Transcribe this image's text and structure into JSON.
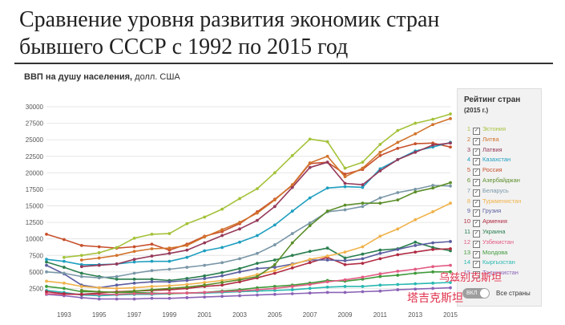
{
  "headline": {
    "line1": "Сравнение уровня развития экономик стран",
    "line2": "бывшего СССР с 1992 по 2015 год"
  },
  "subtitle": {
    "bold": "ВВП на душу населения,",
    "rest": " долл. США"
  },
  "legend": {
    "title": "Рейтинг стран",
    "subtitle": "(2015 г.)",
    "toggle_label": "ВКЛ",
    "toggle_text": "Все страны"
  },
  "watermarks": [
    "乌兹别克斯坦",
    "塔吉克斯坦"
  ],
  "chart_data": {
    "type": "line",
    "xlim": [
      1992,
      2015
    ],
    "ylim": [
      0,
      30000
    ],
    "x_ticks": [
      1993,
      1995,
      1997,
      1999,
      2001,
      2003,
      2005,
      2007,
      2009,
      2011,
      2013,
      2015
    ],
    "x_tick_labels": [
      "1993",
      "1995",
      "1997",
      "1999",
      "2001",
      "2003",
      "2005",
      "2007",
      "2009",
      "2011",
      "2013",
      "2015"
    ],
    "y_ticks": [
      2500,
      5000,
      7500,
      10000,
      12500,
      15000,
      17500,
      20000,
      22500,
      25000,
      27500,
      30000
    ],
    "y_tick_labels": [
      "2500",
      "5000",
      "7500",
      "10000",
      "12500",
      "15000",
      "17500",
      "20000",
      "22500",
      "25000",
      "27500",
      "30000"
    ],
    "grid": true,
    "legend_position": "right",
    "x": [
      1992,
      1993,
      1994,
      1995,
      1996,
      1997,
      1998,
      1999,
      2000,
      2001,
      2002,
      2003,
      2004,
      2005,
      2006,
      2007,
      2008,
      2009,
      2010,
      2011,
      2012,
      2013,
      2014,
      2015
    ],
    "series": [
      {
        "rank": 1,
        "name": "Эстония",
        "color": "#a4c23a",
        "values": [
          null,
          7200,
          7500,
          7900,
          8700,
          10100,
          10700,
          10800,
          12300,
          13300,
          14500,
          16100,
          17600,
          20000,
          22600,
          25100,
          24700,
          20700,
          21600,
          24300,
          26400,
          27500,
          28100,
          28900
        ]
      },
      {
        "rank": 2,
        "name": "Литва",
        "color": "#d2742c",
        "values": [
          null,
          null,
          6800,
          7100,
          7500,
          8100,
          8500,
          8600,
          9000,
          10300,
          11400,
          12500,
          13900,
          15900,
          18200,
          21500,
          22500,
          19400,
          20700,
          23100,
          24600,
          25900,
          27300,
          28200
        ]
      },
      {
        "rank": 3,
        "name": "Латвия",
        "color": "#95395a",
        "values": [
          null,
          null,
          5800,
          6000,
          6200,
          6900,
          7400,
          7800,
          8300,
          9400,
          10500,
          11500,
          12800,
          14900,
          17800,
          20800,
          21600,
          18400,
          18200,
          20300,
          22000,
          23100,
          24200,
          24500
        ]
      },
      {
        "rank": 4,
        "name": "Казахстан",
        "color": "#1f9fc0",
        "values": [
          6900,
          6600,
          6100,
          6100,
          6200,
          6500,
          6600,
          6600,
          7200,
          8200,
          8700,
          9500,
          10500,
          12100,
          14200,
          16200,
          17700,
          17900,
          17800,
          20600,
          22000,
          23300,
          23900,
          24600
        ]
      },
      {
        "rank": 5,
        "name": "Россия",
        "color": "#c7502c",
        "values": [
          10700,
          9900,
          9000,
          8800,
          8600,
          8800,
          9200,
          8300,
          9200,
          10400,
          11100,
          12300,
          14100,
          16000,
          18100,
          21400,
          21600,
          19800,
          20500,
          22600,
          23700,
          24400,
          24500,
          23900
        ]
      },
      {
        "rank": 6,
        "name": "Азербайджан",
        "color": "#5c8e2a",
        "values": [
          null,
          null,
          2200,
          2000,
          1900,
          2100,
          2300,
          2500,
          2700,
          3000,
          3400,
          3800,
          4300,
          6100,
          9400,
          12000,
          14200,
          15100,
          15400,
          15400,
          15900,
          17100,
          17700,
          18500
        ]
      },
      {
        "rank": 7,
        "name": "Беларусь",
        "color": "#7a97a8",
        "values": [
          5000,
          4800,
          4300,
          4100,
          4300,
          4800,
          5200,
          5400,
          5700,
          6000,
          6400,
          7000,
          7800,
          9100,
          10800,
          12400,
          14100,
          14400,
          14900,
          16200,
          17000,
          17500,
          18100,
          18000
        ]
      },
      {
        "rank": 8,
        "name": "Туркменистан",
        "color": "#f0b24a",
        "values": [
          3600,
          3300,
          2800,
          2600,
          2500,
          2600,
          2800,
          2900,
          3100,
          3400,
          3700,
          4000,
          4600,
          5200,
          6100,
          6900,
          7400,
          8000,
          8800,
          10400,
          11500,
          12900,
          14100,
          15400
        ]
      },
      {
        "rank": 9,
        "name": "Грузия",
        "color": "#5b5ea0",
        "values": [
          6000,
          4700,
          3000,
          2600,
          3000,
          3300,
          3500,
          3500,
          3700,
          4000,
          4400,
          5000,
          5500,
          5700,
          6200,
          6800,
          6800,
          6700,
          7000,
          7800,
          8400,
          9000,
          9400,
          9600
        ]
      },
      {
        "rank": 10,
        "name": "Армения",
        "color": "#b02b43",
        "values": [
          2000,
          1700,
          1600,
          1800,
          2000,
          2100,
          2200,
          2300,
          2500,
          2800,
          3000,
          3500,
          4100,
          4800,
          5600,
          6400,
          7200,
          6100,
          6300,
          7000,
          7600,
          8000,
          8400,
          8500
        ]
      },
      {
        "rank": 11,
        "name": "Украина",
        "color": "#2a7f4f",
        "values": [
          6500,
          5700,
          4800,
          4300,
          3900,
          3900,
          3900,
          3700,
          4000,
          4400,
          4900,
          5500,
          6300,
          6800,
          7500,
          8100,
          8600,
          7100,
          7700,
          8300,
          8500,
          9500,
          8700,
          8200
        ]
      },
      {
        "rank": 12,
        "name": "Узбекистан",
        "color": "#e25b82",
        "values": [
          1700,
          1600,
          1600,
          1600,
          1600,
          1700,
          1700,
          1800,
          1800,
          1900,
          2000,
          2100,
          2300,
          2500,
          2800,
          3100,
          3500,
          3800,
          4200,
          4700,
          5100,
          5400,
          5800,
          6000
        ]
      },
      {
        "rank": 13,
        "name": "Молдова",
        "color": "#3f9a3a",
        "values": [
          2800,
          2500,
          2000,
          2000,
          1900,
          1900,
          1800,
          1700,
          1800,
          1900,
          2100,
          2300,
          2600,
          2800,
          3000,
          3300,
          3700,
          3600,
          3900,
          4300,
          4500,
          4800,
          5000,
          5000
        ]
      },
      {
        "rank": 14,
        "name": "Кыргызстан",
        "color": "#2ab8b1",
        "values": [
          2200,
          1900,
          1500,
          1400,
          1500,
          1600,
          1600,
          1700,
          1800,
          1800,
          1900,
          2000,
          2100,
          2200,
          2300,
          2500,
          2700,
          2800,
          2800,
          3000,
          3100,
          3200,
          3300,
          3400
        ]
      },
      {
        "rank": 15,
        "name": "Таджикистан",
        "color": "#8a63b6",
        "values": [
          1600,
          1400,
          1100,
          900,
          900,
          900,
          1000,
          1000,
          1100,
          1200,
          1300,
          1400,
          1500,
          1600,
          1700,
          1800,
          1900,
          1900,
          2000,
          2100,
          2300,
          2400,
          2500,
          2600
        ]
      }
    ]
  }
}
